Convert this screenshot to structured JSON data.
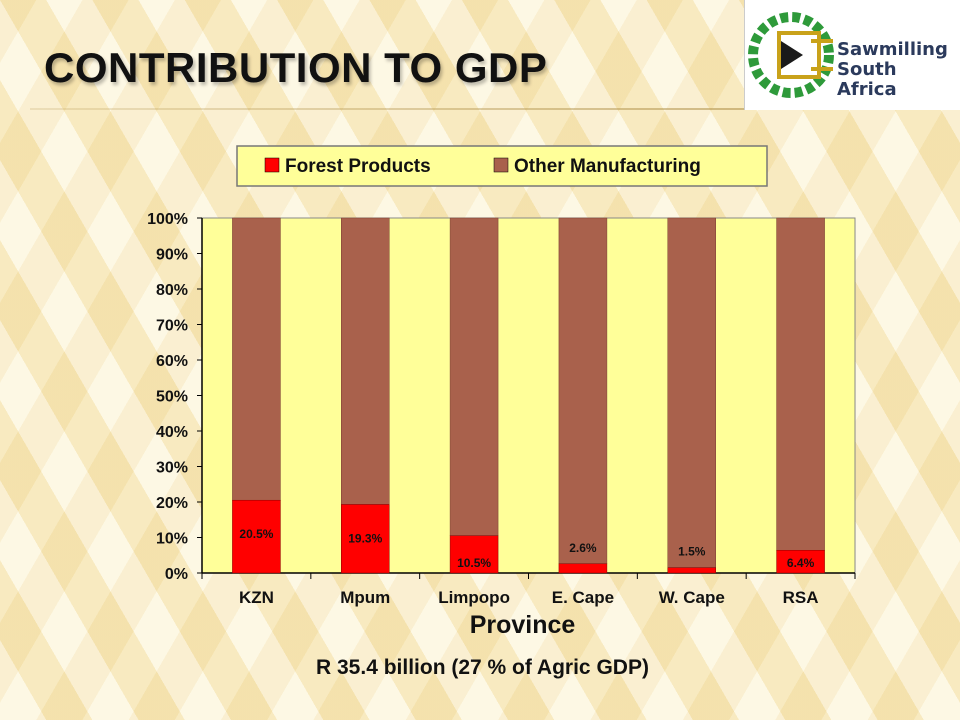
{
  "slide": {
    "title": "CONTRIBUTION TO GDP",
    "footer": "R 35.4 billion (27 % of Agric GDP)"
  },
  "logo": {
    "line1": "Sawmilling",
    "line2": "South Africa",
    "colors": {
      "green": "#2e9a3a",
      "gold": "#c9a21a",
      "navy": "#2b3a5c"
    }
  },
  "chart_data": {
    "type": "bar",
    "stacked": "percent",
    "categories": [
      "KZN",
      "Mpum",
      "Limpopo",
      "E. Cape",
      "W. Cape",
      "RSA"
    ],
    "series": [
      {
        "name": "Forest Products",
        "values": [
          20.5,
          19.3,
          10.5,
          2.6,
          1.5,
          6.4
        ],
        "color": "#ff0000",
        "labels": [
          "20.5%",
          "19.3%",
          "10.5%",
          "2.6%",
          "1.5%",
          "6.4%"
        ]
      },
      {
        "name": "Other Manufacturing",
        "values": [
          79.5,
          80.7,
          89.5,
          97.4,
          98.5,
          93.6
        ],
        "color": "#a9614c"
      }
    ],
    "xlabel": "Province",
    "ylabel": "",
    "ylim": [
      0,
      100
    ],
    "yticks": [
      "0%",
      "10%",
      "20%",
      "30%",
      "40%",
      "50%",
      "60%",
      "70%",
      "80%",
      "90%",
      "100%"
    ],
    "grid": false,
    "legend": "top",
    "plot_background": "#ffff99"
  }
}
